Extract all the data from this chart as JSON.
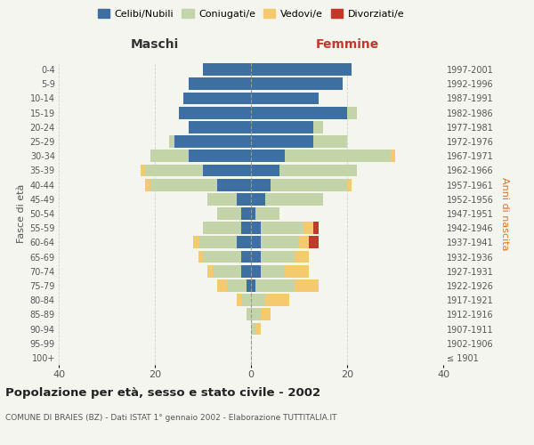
{
  "age_groups": [
    "100+",
    "95-99",
    "90-94",
    "85-89",
    "80-84",
    "75-79",
    "70-74",
    "65-69",
    "60-64",
    "55-59",
    "50-54",
    "45-49",
    "40-44",
    "35-39",
    "30-34",
    "25-29",
    "20-24",
    "15-19",
    "10-14",
    "5-9",
    "0-4"
  ],
  "birth_years": [
    "≤ 1901",
    "1902-1906",
    "1907-1911",
    "1912-1916",
    "1917-1921",
    "1922-1926",
    "1927-1931",
    "1932-1936",
    "1937-1941",
    "1942-1946",
    "1947-1951",
    "1952-1956",
    "1957-1961",
    "1962-1966",
    "1967-1971",
    "1972-1976",
    "1977-1981",
    "1982-1986",
    "1987-1991",
    "1992-1996",
    "1997-2001"
  ],
  "maschi": {
    "celibi": [
      0,
      0,
      0,
      0,
      0,
      1,
      2,
      2,
      3,
      2,
      2,
      3,
      7,
      10,
      13,
      16,
      13,
      15,
      14,
      13,
      10
    ],
    "coniugati": [
      0,
      0,
      0,
      1,
      2,
      4,
      6,
      8,
      8,
      8,
      5,
      6,
      14,
      12,
      8,
      1,
      0,
      0,
      0,
      0,
      0
    ],
    "vedovi": [
      0,
      0,
      0,
      0,
      1,
      2,
      1,
      1,
      1,
      0,
      0,
      0,
      1,
      1,
      0,
      0,
      0,
      0,
      0,
      0,
      0
    ],
    "divorziati": [
      0,
      0,
      0,
      0,
      0,
      0,
      0,
      0,
      0,
      0,
      0,
      0,
      0,
      0,
      0,
      0,
      0,
      0,
      0,
      0,
      0
    ]
  },
  "femmine": {
    "nubili": [
      0,
      0,
      0,
      0,
      0,
      1,
      2,
      2,
      2,
      2,
      1,
      3,
      4,
      6,
      7,
      13,
      13,
      20,
      14,
      19,
      21
    ],
    "coniugate": [
      0,
      0,
      1,
      2,
      3,
      8,
      5,
      7,
      8,
      9,
      5,
      12,
      16,
      16,
      22,
      7,
      2,
      2,
      0,
      0,
      0
    ],
    "vedove": [
      0,
      0,
      1,
      2,
      5,
      5,
      5,
      3,
      2,
      2,
      0,
      0,
      1,
      0,
      1,
      0,
      0,
      0,
      0,
      0,
      0
    ],
    "divorziate": [
      0,
      0,
      0,
      0,
      0,
      0,
      0,
      0,
      2,
      1,
      0,
      0,
      0,
      0,
      0,
      0,
      0,
      0,
      0,
      0,
      0
    ]
  },
  "colors": {
    "celibi": "#3d6fa0",
    "coniugati": "#c3d4a8",
    "vedovi": "#f5c96e",
    "divorziati": "#c0392b"
  },
  "legend_labels": [
    "Celibi/Nubili",
    "Coniugati/e",
    "Vedovi/e",
    "Divorziati/e"
  ],
  "title": "Popolazione per età, sesso e stato civile - 2002",
  "subtitle": "COMUNE DI BRAIES (BZ) - Dati ISTAT 1° gennaio 2002 - Elaborazione TUTTITALIA.IT",
  "xlabel_left": "Maschi",
  "xlabel_right": "Femmine",
  "ylabel_left": "Fasce di età",
  "ylabel_right": "Anni di nascita",
  "xlim": 40,
  "background_color": "#f5f5f0",
  "grid_color": "#cccccc"
}
